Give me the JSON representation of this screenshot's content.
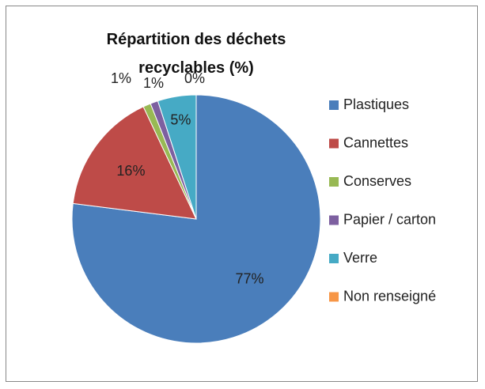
{
  "chart_data": {
    "type": "pie",
    "title": "Répartition des déchets recyclables (%)",
    "categories": [
      "Plastiques",
      "Cannettes",
      "Conserves",
      "Papier / carton",
      "Verre",
      "Non renseigné"
    ],
    "values": [
      77,
      16,
      1,
      1,
      5,
      0
    ],
    "value_labels": [
      "77%",
      "16%",
      "1%",
      "1%",
      "5%",
      "0%"
    ],
    "colors": [
      "#4a7ebb",
      "#be4b48",
      "#98b954",
      "#7d60a0",
      "#46aac5",
      "#f79646"
    ],
    "legend": "right"
  }
}
